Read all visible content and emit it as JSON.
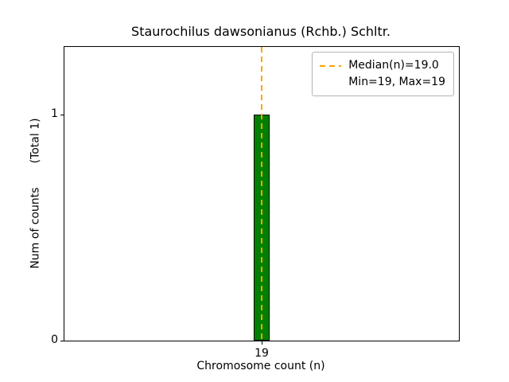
{
  "chart_data": {
    "type": "bar",
    "title": "Staurochilus dawsonianus (Rchb.) Schltr.",
    "xlabel": "Chromosome count (n)",
    "ylabel": "Num of counts",
    "ylabel_note": "(Total 1)",
    "x": [
      19
    ],
    "values": [
      1
    ],
    "bar_width": 0.4,
    "xlim": [
      14,
      24
    ],
    "ylim": [
      0,
      1.3
    ],
    "xticks": [
      19
    ],
    "yticks": [
      0,
      1
    ],
    "grid": false,
    "median": 19.0,
    "min": 19,
    "max": 19,
    "total_counts": 1,
    "legend": {
      "position": "upper right",
      "entries": [
        "Median(n)=19.0",
        "Min=19, Max=19"
      ]
    },
    "colors": {
      "bar_fill": "#008000",
      "bar_edge": "#000000",
      "median_line": "#ffa500"
    }
  }
}
